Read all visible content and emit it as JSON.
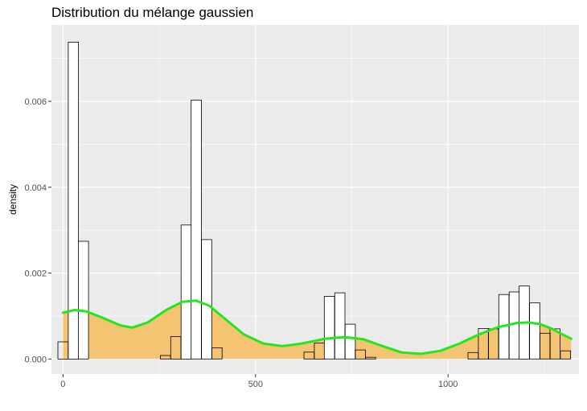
{
  "chart_data": {
    "type": "bar",
    "title": "Distribution du mélange gaussien",
    "xlabel": "",
    "ylabel": "density",
    "xlim": [
      -30,
      1340
    ],
    "ylim": [
      -0.00035,
      0.00778
    ],
    "x_ticks": [
      0,
      500,
      1000
    ],
    "x_tick_labels": [
      "0",
      "500",
      "1000"
    ],
    "y_ticks": [
      0.0,
      0.002,
      0.004,
      0.006
    ],
    "y_tick_labels": [
      "0.000",
      "0.002",
      "0.004",
      "0.006"
    ],
    "grid": true,
    "legend": "none",
    "panel_background": "#ebebeb",
    "grid_color": "#ffffff",
    "histogram": {
      "bin_width": 26.6,
      "fill": "#ffffff",
      "stroke": "#000000",
      "bins": [
        {
          "x": 0,
          "density": 0.0004
        },
        {
          "x": 27,
          "density": 0.00738
        },
        {
          "x": 53,
          "density": 0.00274
        },
        {
          "x": 266,
          "density": 8e-05
        },
        {
          "x": 293,
          "density": 0.00052
        },
        {
          "x": 320,
          "density": 0.00312
        },
        {
          "x": 346,
          "density": 0.00603
        },
        {
          "x": 373,
          "density": 0.00278
        },
        {
          "x": 400,
          "density": 0.00026
        },
        {
          "x": 639,
          "density": 0.00016
        },
        {
          "x": 666,
          "density": 0.00037
        },
        {
          "x": 692,
          "density": 0.00146
        },
        {
          "x": 719,
          "density": 0.00154
        },
        {
          "x": 746,
          "density": 0.00081
        },
        {
          "x": 772,
          "density": 0.00021
        },
        {
          "x": 799,
          "density": 4e-05
        },
        {
          "x": 1065,
          "density": 0.00015
        },
        {
          "x": 1092,
          "density": 0.00071
        },
        {
          "x": 1118,
          "density": 0.0007
        },
        {
          "x": 1145,
          "density": 0.0015
        },
        {
          "x": 1172,
          "density": 0.00156
        },
        {
          "x": 1198,
          "density": 0.0017
        },
        {
          "x": 1225,
          "density": 0.00131
        },
        {
          "x": 1252,
          "density": 0.0006
        },
        {
          "x": 1278,
          "density": 0.0007
        },
        {
          "x": 1305,
          "density": 0.00019
        }
      ]
    },
    "density_curve": {
      "fill": "#f5c26b",
      "line_color": "#22e61e",
      "x": [
        0,
        30,
        60,
        100,
        150,
        180,
        220,
        270,
        310,
        345,
        380,
        420,
        470,
        520,
        570,
        620,
        680,
        730,
        780,
        830,
        880,
        930,
        980,
        1030,
        1080,
        1130,
        1180,
        1210,
        1240,
        1270,
        1300,
        1320
      ],
      "y": [
        0.00108,
        0.00114,
        0.00111,
        0.00097,
        0.00078,
        0.00073,
        0.00085,
        0.00115,
        0.00133,
        0.00136,
        0.00124,
        0.00094,
        0.00057,
        0.00036,
        0.0003,
        0.00036,
        0.00047,
        0.00051,
        0.00046,
        0.0003,
        0.00015,
        0.00012,
        0.00019,
        0.00036,
        0.00057,
        0.00074,
        0.00084,
        0.00085,
        0.00081,
        0.0007,
        0.00056,
        0.00047
      ]
    }
  }
}
